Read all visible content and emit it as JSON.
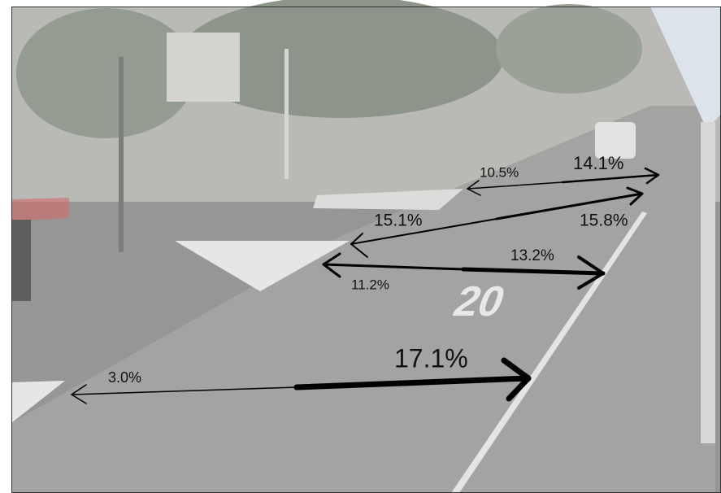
{
  "arrows": [
    {
      "left_label": "10.5%",
      "right_label": "14.1%"
    },
    {
      "left_label": "15.1%",
      "right_label": "15.8%"
    },
    {
      "left_label": "11.2%",
      "right_label": "13.2%"
    },
    {
      "left_label": "3.0%",
      "right_label": "17.1%"
    }
  ],
  "road_marking": "20"
}
